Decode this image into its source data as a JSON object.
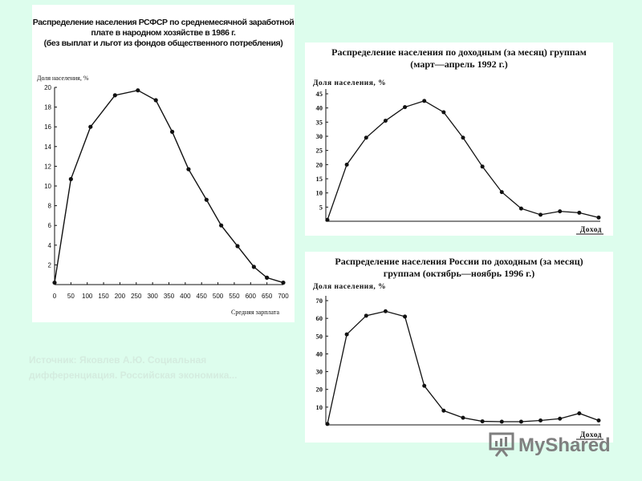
{
  "chart_data": [
    {
      "type": "line",
      "title": "Распределение населения РСФСР по среднемесячной заработной плате в народном хозяйстве в 1986 г. (без выплат и льгот из фондов общественного потребления)",
      "title_lines": [
        "Распределение населения РСФСР по среднемесячной заработной",
        "плате в народном хозяйстве в 1986 г.",
        "(без выплат и льгот из фондов общественного потребления)"
      ],
      "ylabel": "Доля населения, %",
      "xlabel": "Средняя зарплата",
      "x": [
        0,
        50,
        110,
        185,
        255,
        310,
        360,
        410,
        465,
        510,
        560,
        610,
        650,
        700
      ],
      "y": [
        0.2,
        10.7,
        16,
        19.2,
        19.7,
        18.7,
        15.5,
        11.7,
        8.6,
        6,
        3.9,
        1.8,
        0.7,
        0.2
      ],
      "xlim": [
        0,
        700
      ],
      "ylim": [
        0,
        20
      ],
      "xticks": [
        0,
        50,
        100,
        150,
        200,
        250,
        300,
        350,
        400,
        450,
        500,
        550,
        600,
        650,
        700
      ],
      "yticks": [
        2,
        4,
        6,
        8,
        10,
        12,
        14,
        16,
        18,
        20
      ]
    },
    {
      "type": "line",
      "title": "Распределение населения по доходным (за месяц) группам (март—апрель 1992 г.)",
      "title_lines": [
        "Распределение населения по доходным (за месяц) группам",
        "(март—апрель 1992 г.)"
      ],
      "ylabel": "Доля населения, %",
      "xlabel": "Доход",
      "y": [
        0.5,
        20,
        29.5,
        35.5,
        40.3,
        42.5,
        38.5,
        29.5,
        19.3,
        10.3,
        4.5,
        2.3,
        3.5,
        3,
        1.3
      ],
      "ylim": [
        0,
        45
      ],
      "yticks": [
        5,
        10,
        15,
        20,
        25,
        30,
        35,
        40,
        45
      ]
    },
    {
      "type": "line",
      "title": "Распределение населения России по доходным (за месяц) группам (октябрь—ноябрь 1996 г.)",
      "title_lines": [
        "Распределение населения России по доходным (за месяц)",
        "группам (октябрь—ноябрь 1996 г.)"
      ],
      "ylabel": "Доля населения, %",
      "xlabel": "Доход",
      "y": [
        0.5,
        51,
        61.5,
        64,
        61,
        22,
        8,
        4,
        2,
        1.8,
        1.8,
        2.5,
        3.5,
        6.5,
        2.5
      ],
      "ylim": [
        0,
        70
      ],
      "yticks": [
        10,
        20,
        30,
        40,
        50,
        60,
        70
      ]
    }
  ],
  "source_note": "Источник: Яковлев А.Ю. Социальная дифференциация. Российская экономика...",
  "watermark": {
    "text": "MyShared",
    "icon": "presentation-icon"
  }
}
